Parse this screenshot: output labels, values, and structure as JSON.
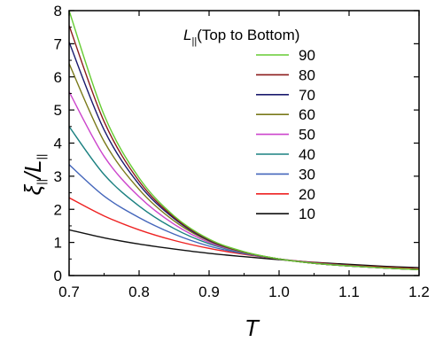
{
  "chart_data": {
    "type": "line",
    "title": "",
    "xlabel": "T",
    "ylabel": {
      "xi": "ξ",
      "xi_sub": "||",
      "slash": "/",
      "L": "L",
      "L_sub": "||"
    },
    "xlim": [
      0.7,
      1.2
    ],
    "ylim": [
      0,
      8
    ],
    "x_ticks": [
      "0.7",
      "0.8",
      "0.9",
      "1.0",
      "1.1",
      "1.2"
    ],
    "y_ticks": [
      "0",
      "1",
      "2",
      "3",
      "4",
      "5",
      "6",
      "7",
      "8"
    ],
    "grid": false,
    "legend_placement": "top-right",
    "legend_title": {
      "L": "L",
      "sub": "||",
      "rest": "(Top to Bottom)"
    },
    "x": [
      0.7,
      0.75,
      0.8,
      0.85,
      0.9,
      0.95,
      1.0,
      1.05,
      1.1,
      1.15,
      1.2
    ],
    "series": [
      {
        "name": "90",
        "color": "#66cc33",
        "values": [
          8.0,
          4.85,
          2.95,
          1.8,
          1.1,
          0.72,
          0.5,
          0.37,
          0.29,
          0.23,
          0.18
        ]
      },
      {
        "name": "80",
        "color": "#8b1a1a",
        "values": [
          7.55,
          4.65,
          2.85,
          1.76,
          1.08,
          0.71,
          0.5,
          0.37,
          0.29,
          0.23,
          0.18
        ]
      },
      {
        "name": "70",
        "color": "#1a1a6e",
        "values": [
          7.05,
          4.4,
          2.75,
          1.72,
          1.06,
          0.71,
          0.5,
          0.37,
          0.29,
          0.23,
          0.18
        ]
      },
      {
        "name": "60",
        "color": "#7a7a1a",
        "values": [
          6.4,
          4.05,
          2.6,
          1.65,
          1.04,
          0.7,
          0.5,
          0.37,
          0.29,
          0.23,
          0.18
        ]
      },
      {
        "name": "50",
        "color": "#cc44cc",
        "values": [
          5.55,
          3.6,
          2.38,
          1.55,
          1.0,
          0.69,
          0.5,
          0.37,
          0.29,
          0.23,
          0.18
        ]
      },
      {
        "name": "40",
        "color": "#1a8080",
        "values": [
          4.5,
          3.05,
          2.1,
          1.42,
          0.96,
          0.68,
          0.5,
          0.37,
          0.29,
          0.23,
          0.18
        ]
      },
      {
        "name": "30",
        "color": "#4466bb",
        "values": [
          3.35,
          2.4,
          1.75,
          1.25,
          0.89,
          0.66,
          0.5,
          0.38,
          0.3,
          0.23,
          0.18
        ]
      },
      {
        "name": "20",
        "color": "#ee2222",
        "values": [
          2.35,
          1.8,
          1.38,
          1.06,
          0.82,
          0.64,
          0.5,
          0.39,
          0.31,
          0.25,
          0.2
        ]
      },
      {
        "name": "10",
        "color": "#111111",
        "values": [
          1.38,
          1.14,
          0.95,
          0.8,
          0.67,
          0.57,
          0.48,
          0.4,
          0.34,
          0.28,
          0.24
        ]
      }
    ]
  }
}
